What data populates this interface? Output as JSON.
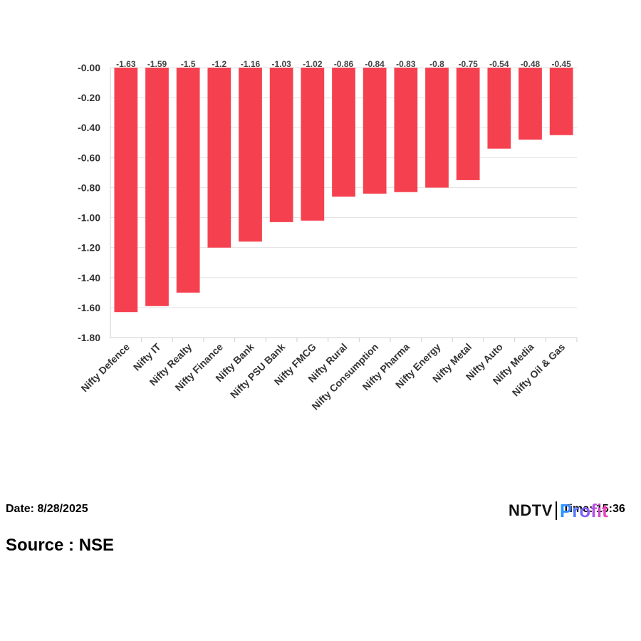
{
  "chart_data": {
    "type": "bar",
    "categories": [
      "Nifty Defence",
      "Nifty IT",
      "Nifty Realty",
      "Nifty Finance",
      "Nifty Bank",
      "Nifty PSU Bank",
      "Nifty FMCG",
      "Nifty Rural",
      "Nifty Consumption",
      "Nifty Pharma",
      "Nifty Energy",
      "Nifty Metal",
      "Nifty Auto",
      "Nifty Media",
      "Nifty Oil & Gas"
    ],
    "values": [
      -1.63,
      -1.59,
      -1.5,
      -1.2,
      -1.16,
      -1.03,
      -1.02,
      -0.86,
      -0.84,
      -0.83,
      -0.8,
      -0.75,
      -0.54,
      -0.48,
      -0.45
    ],
    "data_labels": [
      "-1.63",
      "-1.59",
      "-1.5",
      "-1.2",
      "-1.16",
      "-1.03",
      "-1.02",
      "-0.86",
      "-0.84",
      "-0.83",
      "-0.8",
      "-0.75",
      "-0.54",
      "-0.48",
      "-0.45"
    ],
    "ylim": [
      -1.8,
      0
    ],
    "yticks": [
      -0.0,
      -0.2,
      -0.4,
      -0.6,
      -0.8,
      -1.0,
      -1.2,
      -1.4,
      -1.6,
      -1.8
    ],
    "ytick_labels": [
      "-0.00",
      "-0.20",
      "-0.40",
      "-0.60",
      "-0.80",
      "-1.00",
      "-1.20",
      "-1.40",
      "-1.60",
      "-1.80"
    ],
    "grid": true,
    "bar_color": "#f5414f",
    "title": "",
    "xlabel": "",
    "ylabel": ""
  },
  "footer": {
    "date": "Date: 8/28/2025",
    "source": "Source : NSE",
    "time": "Time: 15:36"
  },
  "logo": {
    "brand_left": "NDTV",
    "brand_right": "Profit"
  }
}
